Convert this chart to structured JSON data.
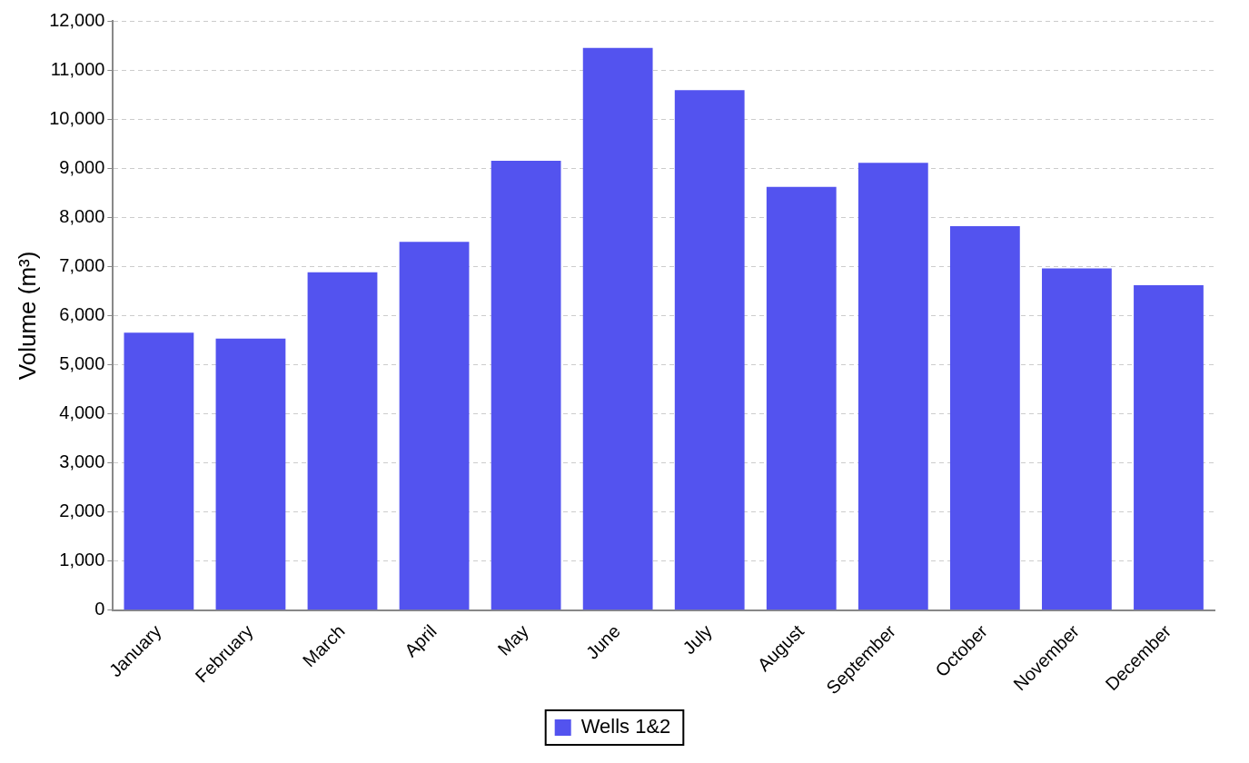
{
  "chart_data": {
    "type": "bar",
    "ylabel": "Volume (m³)",
    "categories": [
      "January",
      "February",
      "March",
      "April",
      "May",
      "June",
      "July",
      "August",
      "September",
      "October",
      "November",
      "December"
    ],
    "series": [
      {
        "name": "Wells 1&2",
        "color": "#5353ef",
        "values": [
          5650,
          5530,
          6880,
          7500,
          9150,
          11450,
          10590,
          8620,
          9110,
          7820,
          6960,
          6620
        ]
      }
    ],
    "ylim": [
      0,
      12000
    ],
    "yticks": [
      0,
      {
        "value": 1000,
        "label": "1,000"
      },
      {
        "value": 2000,
        "label": "2,000"
      },
      {
        "value": 3000,
        "label": "3,000"
      },
      {
        "value": 4000,
        "label": "4,000"
      },
      {
        "value": 5000,
        "label": "5,000"
      },
      {
        "value": 6000,
        "label": "6,000"
      },
      {
        "value": 7000,
        "label": "7,000"
      },
      {
        "value": 8000,
        "label": "8,000"
      },
      {
        "value": 9000,
        "label": "9,000"
      },
      {
        "value": 10000,
        "label": "10,000"
      },
      {
        "value": 11000,
        "label": "11,000"
      },
      {
        "value": 12000,
        "label": "12,000"
      }
    ],
    "grid": "y",
    "legend": "bottom"
  }
}
